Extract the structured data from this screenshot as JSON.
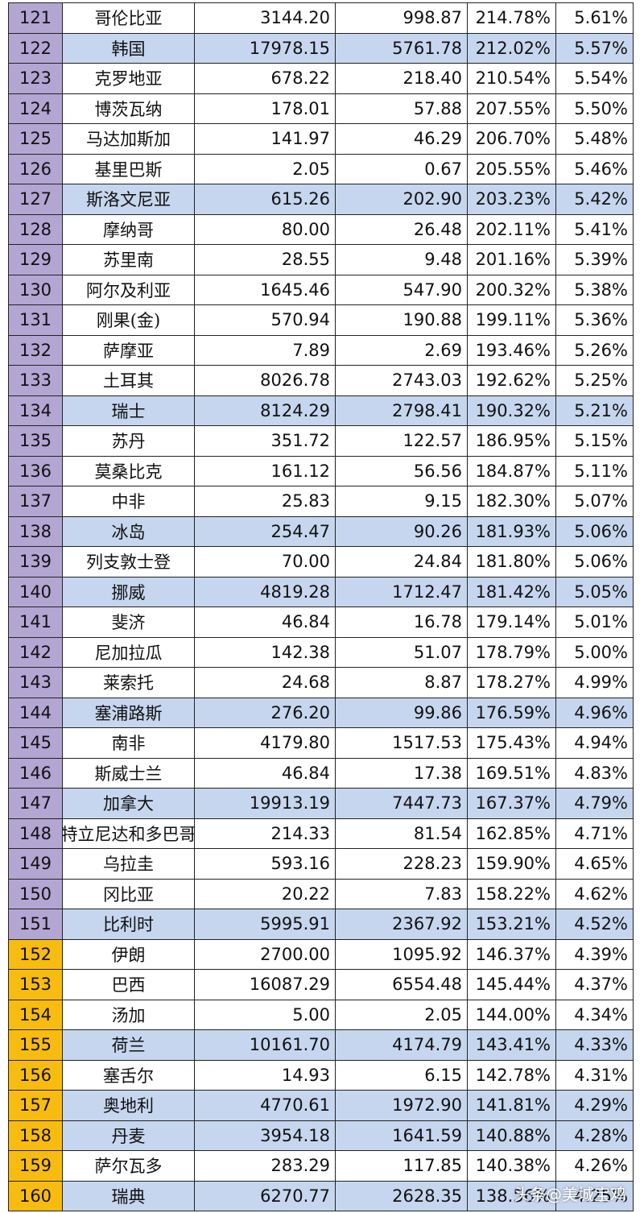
{
  "colors": {
    "rank_purple": "#b3a6d2",
    "rank_orange": "#f8bc10",
    "highlight_blue": "#c6d6ee",
    "grid": "#222222"
  },
  "table": {
    "rows": [
      {
        "rank": "121",
        "name": "哥伦比亚",
        "a": "3144.20",
        "b": "998.87",
        "c": "214.78%",
        "d": "5.61%",
        "highlight": false,
        "rank_color": "purple"
      },
      {
        "rank": "122",
        "name": "韩国",
        "a": "17978.15",
        "b": "5761.78",
        "c": "212.02%",
        "d": "5.57%",
        "highlight": true,
        "rank_color": "purple"
      },
      {
        "rank": "123",
        "name": "克罗地亚",
        "a": "678.22",
        "b": "218.40",
        "c": "210.54%",
        "d": "5.54%",
        "highlight": false,
        "rank_color": "purple"
      },
      {
        "rank": "124",
        "name": "博茨瓦纳",
        "a": "178.01",
        "b": "57.88",
        "c": "207.55%",
        "d": "5.50%",
        "highlight": false,
        "rank_color": "purple"
      },
      {
        "rank": "125",
        "name": "马达加斯加",
        "a": "141.97",
        "b": "46.29",
        "c": "206.70%",
        "d": "5.48%",
        "highlight": false,
        "rank_color": "purple"
      },
      {
        "rank": "126",
        "name": "基里巴斯",
        "a": "2.05",
        "b": "0.67",
        "c": "205.55%",
        "d": "5.46%",
        "highlight": false,
        "rank_color": "purple"
      },
      {
        "rank": "127",
        "name": "斯洛文尼亚",
        "a": "615.26",
        "b": "202.90",
        "c": "203.23%",
        "d": "5.42%",
        "highlight": true,
        "rank_color": "purple"
      },
      {
        "rank": "128",
        "name": "摩纳哥",
        "a": "80.00",
        "b": "26.48",
        "c": "202.11%",
        "d": "5.41%",
        "highlight": false,
        "rank_color": "purple"
      },
      {
        "rank": "129",
        "name": "苏里南",
        "a": "28.55",
        "b": "9.48",
        "c": "201.16%",
        "d": "5.39%",
        "highlight": false,
        "rank_color": "purple"
      },
      {
        "rank": "130",
        "name": "阿尔及利亚",
        "a": "1645.46",
        "b": "547.90",
        "c": "200.32%",
        "d": "5.38%",
        "highlight": false,
        "rank_color": "purple"
      },
      {
        "rank": "131",
        "name": "刚果(金)",
        "a": "570.94",
        "b": "190.88",
        "c": "199.11%",
        "d": "5.36%",
        "highlight": false,
        "rank_color": "purple"
      },
      {
        "rank": "132",
        "name": "萨摩亚",
        "a": "7.89",
        "b": "2.69",
        "c": "193.46%",
        "d": "5.26%",
        "highlight": false,
        "rank_color": "purple"
      },
      {
        "rank": "133",
        "name": "土耳其",
        "a": "8026.78",
        "b": "2743.03",
        "c": "192.62%",
        "d": "5.25%",
        "highlight": false,
        "rank_color": "purple"
      },
      {
        "rank": "134",
        "name": "瑞士",
        "a": "8124.29",
        "b": "2798.41",
        "c": "190.32%",
        "d": "5.21%",
        "highlight": true,
        "rank_color": "purple"
      },
      {
        "rank": "135",
        "name": "苏丹",
        "a": "351.72",
        "b": "122.57",
        "c": "186.95%",
        "d": "5.15%",
        "highlight": false,
        "rank_color": "purple"
      },
      {
        "rank": "136",
        "name": "莫桑比克",
        "a": "161.12",
        "b": "56.56",
        "c": "184.87%",
        "d": "5.11%",
        "highlight": false,
        "rank_color": "purple"
      },
      {
        "rank": "137",
        "name": "中非",
        "a": "25.83",
        "b": "9.15",
        "c": "182.30%",
        "d": "5.07%",
        "highlight": false,
        "rank_color": "purple"
      },
      {
        "rank": "138",
        "name": "冰岛",
        "a": "254.47",
        "b": "90.26",
        "c": "181.93%",
        "d": "5.06%",
        "highlight": true,
        "rank_color": "purple"
      },
      {
        "rank": "139",
        "name": "列支敦士登",
        "a": "70.00",
        "b": "24.84",
        "c": "181.80%",
        "d": "5.06%",
        "highlight": false,
        "rank_color": "purple"
      },
      {
        "rank": "140",
        "name": "挪威",
        "a": "4819.28",
        "b": "1712.47",
        "c": "181.42%",
        "d": "5.05%",
        "highlight": true,
        "rank_color": "purple"
      },
      {
        "rank": "141",
        "name": "斐济",
        "a": "46.84",
        "b": "16.78",
        "c": "179.14%",
        "d": "5.01%",
        "highlight": false,
        "rank_color": "purple"
      },
      {
        "rank": "142",
        "name": "尼加拉瓜",
        "a": "142.38",
        "b": "51.07",
        "c": "178.79%",
        "d": "5.00%",
        "highlight": false,
        "rank_color": "purple"
      },
      {
        "rank": "143",
        "name": "莱索托",
        "a": "24.68",
        "b": "8.87",
        "c": "178.27%",
        "d": "4.99%",
        "highlight": false,
        "rank_color": "purple"
      },
      {
        "rank": "144",
        "name": "塞浦路斯",
        "a": "276.20",
        "b": "99.86",
        "c": "176.59%",
        "d": "4.96%",
        "highlight": true,
        "rank_color": "purple"
      },
      {
        "rank": "145",
        "name": "南非",
        "a": "4179.80",
        "b": "1517.53",
        "c": "175.43%",
        "d": "4.94%",
        "highlight": false,
        "rank_color": "purple"
      },
      {
        "rank": "146",
        "name": "斯威士兰",
        "a": "46.84",
        "b": "17.38",
        "c": "169.51%",
        "d": "4.83%",
        "highlight": false,
        "rank_color": "purple"
      },
      {
        "rank": "147",
        "name": "加拿大",
        "a": "19913.19",
        "b": "7447.73",
        "c": "167.37%",
        "d": "4.79%",
        "highlight": true,
        "rank_color": "purple"
      },
      {
        "rank": "148",
        "name": "特立尼达和多巴哥",
        "a": "214.33",
        "b": "81.54",
        "c": "162.85%",
        "d": "4.71%",
        "highlight": false,
        "rank_color": "purple"
      },
      {
        "rank": "149",
        "name": "乌拉圭",
        "a": "593.16",
        "b": "228.23",
        "c": "159.90%",
        "d": "4.65%",
        "highlight": false,
        "rank_color": "purple"
      },
      {
        "rank": "150",
        "name": "冈比亚",
        "a": "20.22",
        "b": "7.83",
        "c": "158.22%",
        "d": "4.62%",
        "highlight": false,
        "rank_color": "purple"
      },
      {
        "rank": "151",
        "name": "比利时",
        "a": "5995.91",
        "b": "2367.92",
        "c": "153.21%",
        "d": "4.52%",
        "highlight": true,
        "rank_color": "purple"
      },
      {
        "rank": "152",
        "name": "伊朗",
        "a": "2700.00",
        "b": "1095.92",
        "c": "146.37%",
        "d": "4.39%",
        "highlight": false,
        "rank_color": "orange"
      },
      {
        "rank": "153",
        "name": "巴西",
        "a": "16087.29",
        "b": "6554.48",
        "c": "145.44%",
        "d": "4.37%",
        "highlight": false,
        "rank_color": "orange"
      },
      {
        "rank": "154",
        "name": "汤加",
        "a": "5.00",
        "b": "2.05",
        "c": "144.00%",
        "d": "4.34%",
        "highlight": false,
        "rank_color": "orange"
      },
      {
        "rank": "155",
        "name": "荷兰",
        "a": "10161.70",
        "b": "4174.79",
        "c": "143.41%",
        "d": "4.33%",
        "highlight": true,
        "rank_color": "orange"
      },
      {
        "rank": "156",
        "name": "塞舌尔",
        "a": "14.93",
        "b": "6.15",
        "c": "142.78%",
        "d": "4.31%",
        "highlight": false,
        "rank_color": "orange"
      },
      {
        "rank": "157",
        "name": "奥地利",
        "a": "4770.61",
        "b": "1972.90",
        "c": "141.81%",
        "d": "4.29%",
        "highlight": true,
        "rank_color": "orange"
      },
      {
        "rank": "158",
        "name": "丹麦",
        "a": "3954.18",
        "b": "1641.59",
        "c": "140.88%",
        "d": "4.28%",
        "highlight": true,
        "rank_color": "orange"
      },
      {
        "rank": "159",
        "name": "萨尔瓦多",
        "a": "283.29",
        "b": "117.85",
        "c": "140.38%",
        "d": "4.26%",
        "highlight": false,
        "rank_color": "orange"
      },
      {
        "rank": "160",
        "name": "瑞典",
        "a": "6270.77",
        "b": "2628.35",
        "c": "138.56%",
        "d": "4.25%",
        "highlight": true,
        "rank_color": "orange"
      }
    ]
  },
  "watermark": "头条@美城宝鸡"
}
